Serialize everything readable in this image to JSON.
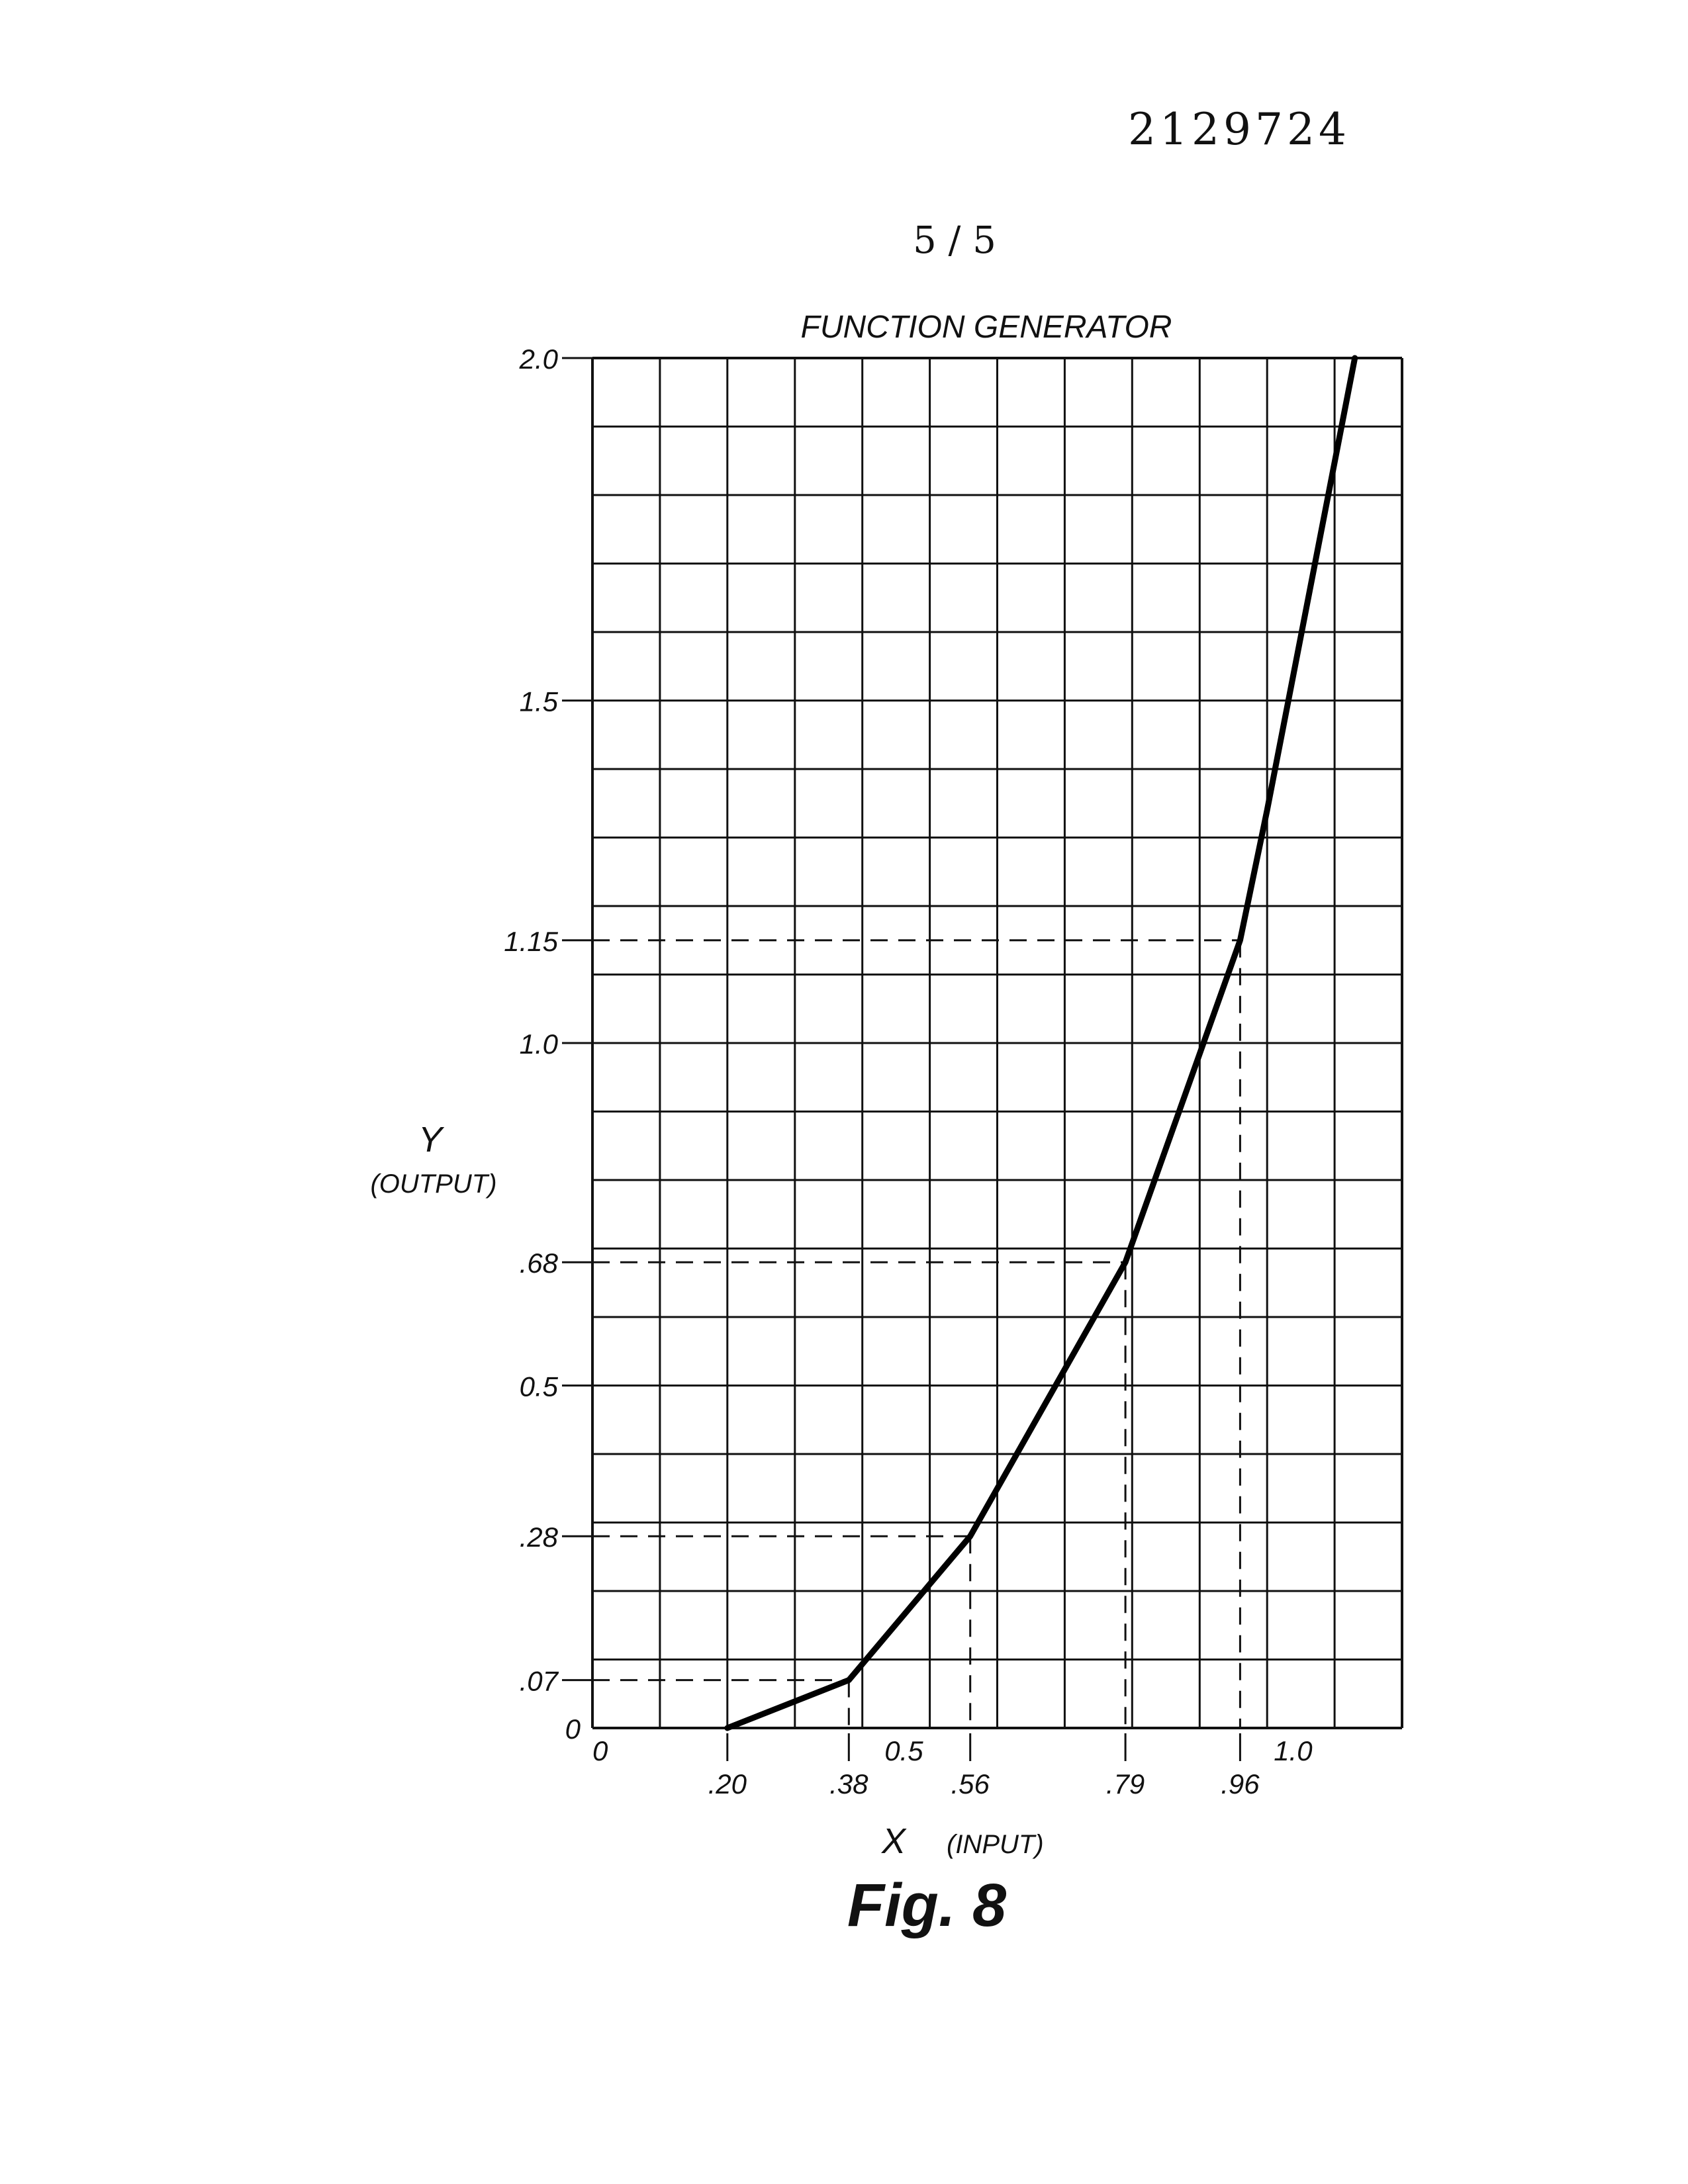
{
  "document": {
    "patent_number": "2129724",
    "sheet": "5 / 5",
    "figure_caption": "Fig. 8"
  },
  "chart_data": {
    "type": "line",
    "title": "FUNCTION GENERATOR",
    "xlabel": "X",
    "xlabel_note": "(INPUT)",
    "ylabel": "Y",
    "ylabel_note": "(OUTPUT)",
    "xlim": [
      0,
      1.2
    ],
    "ylim": [
      0,
      2.0
    ],
    "grid": true,
    "grid_x_step": 0.1,
    "grid_y_step": 0.1,
    "series": [
      {
        "x": [
          0.2,
          0.38,
          0.56,
          0.79,
          0.96,
          1.0,
          1.13
        ],
        "y": [
          0.0,
          0.07,
          0.28,
          0.68,
          1.15,
          1.34,
          2.0
        ]
      }
    ],
    "x_ticks": [
      {
        "value": 0,
        "label": "0",
        "row": "upper"
      },
      {
        "value": 0.2,
        "label": ".20",
        "row": "lower"
      },
      {
        "value": 0.38,
        "label": ".38",
        "row": "lower"
      },
      {
        "value": 0.5,
        "label": "0.5",
        "row": "upper"
      },
      {
        "value": 0.56,
        "label": ".56",
        "row": "lower"
      },
      {
        "value": 0.79,
        "label": ".79",
        "row": "lower"
      },
      {
        "value": 0.96,
        "label": ".96",
        "row": "lower"
      },
      {
        "value": 1.0,
        "label": "1.0",
        "row": "upper"
      }
    ],
    "y_ticks": [
      {
        "value": 0,
        "label": "0"
      },
      {
        "value": 0.07,
        "label": ".07"
      },
      {
        "value": 0.28,
        "label": ".28"
      },
      {
        "value": 0.5,
        "label": "0.5"
      },
      {
        "value": 0.68,
        "label": ".68"
      },
      {
        "value": 1.0,
        "label": "1.0"
      },
      {
        "value": 1.15,
        "label": "1.15"
      },
      {
        "value": 1.5,
        "label": "1.5"
      },
      {
        "value": 2.0,
        "label": "2.0"
      }
    ],
    "guides": [
      {
        "x": 0.38,
        "y": 0.07
      },
      {
        "x": 0.56,
        "y": 0.28
      },
      {
        "x": 0.79,
        "y": 0.68
      },
      {
        "x": 0.96,
        "y": 1.15
      }
    ]
  }
}
